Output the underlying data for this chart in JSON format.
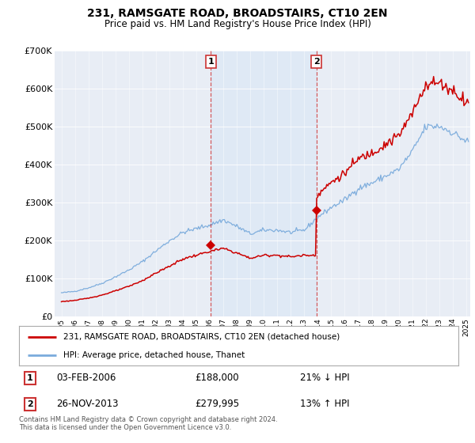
{
  "title": "231, RAMSGATE ROAD, BROADSTAIRS, CT10 2EN",
  "subtitle": "Price paid vs. HM Land Registry's House Price Index (HPI)",
  "legend_entry1": "231, RAMSGATE ROAD, BROADSTAIRS, CT10 2EN (detached house)",
  "legend_entry2": "HPI: Average price, detached house, Thanet",
  "annotation1_date": "03-FEB-2006",
  "annotation1_price": "£188,000",
  "annotation1_hpi": "21% ↓ HPI",
  "annotation2_date": "26-NOV-2013",
  "annotation2_price": "£279,995",
  "annotation2_hpi": "13% ↑ HPI",
  "footnote1": "Contains HM Land Registry data © Crown copyright and database right 2024.",
  "footnote2": "This data is licensed under the Open Government Licence v3.0.",
  "hpi_color": "#7aabdc",
  "price_color": "#cc0000",
  "vline_color": "#cc3333",
  "shade_color": "#d0e4f7",
  "background_color": "#ffffff",
  "plot_bg_color": "#e8edf5",
  "ylim": [
    0,
    700000
  ],
  "yticks": [
    0,
    100000,
    200000,
    300000,
    400000,
    500000,
    600000,
    700000
  ],
  "xlabel_years": [
    "1995",
    "1996",
    "1997",
    "1998",
    "1999",
    "2000",
    "2001",
    "2002",
    "2003",
    "2004",
    "2005",
    "2006",
    "2007",
    "2008",
    "2009",
    "2010",
    "2011",
    "2012",
    "2013",
    "2014",
    "2015",
    "2016",
    "2017",
    "2018",
    "2019",
    "2020",
    "2021",
    "2022",
    "2023",
    "2024",
    "2025"
  ],
  "sale1_x": 2006.08,
  "sale1_y": 188000,
  "sale2_x": 2013.9,
  "sale2_y": 279995,
  "xmin": 1995.0,
  "xmax": 2025.3
}
